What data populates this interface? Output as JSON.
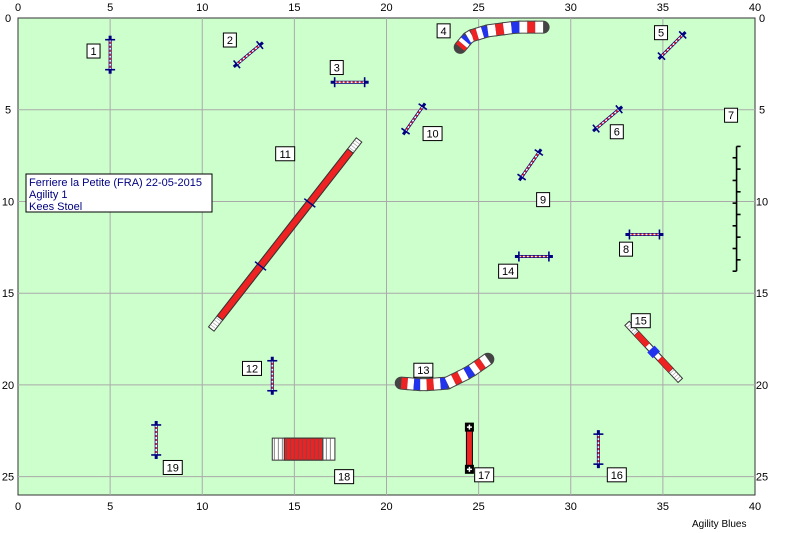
{
  "course": {
    "info_lines": [
      "Ferriere la Petite (FRA) 22-05-2015",
      "Agility 1",
      "Kees Stoel"
    ],
    "credit": "Agility Blues",
    "x_ticks": [
      "0",
      "5",
      "10",
      "15",
      "20",
      "25",
      "30",
      "35",
      "40"
    ],
    "y_ticks": [
      "0",
      "5",
      "10",
      "15",
      "20",
      "25"
    ],
    "colors": {
      "field": "#ccffcc",
      "grid": "#aaaaaa",
      "bar": "#ff2a2a",
      "navy": "#000080",
      "blue": "#2233ee",
      "red": "#ee2222"
    }
  },
  "obstacles": [
    {
      "number": "1",
      "type": "jump",
      "x": 5.0,
      "y": 2.0,
      "angle": 90
    },
    {
      "number": "2",
      "type": "jump",
      "x": 12.5,
      "y": 2.0,
      "angle": -40
    },
    {
      "number": "3",
      "type": "jump",
      "x": 18.0,
      "y": 3.5,
      "angle": 0
    },
    {
      "number": "4",
      "type": "tunnel",
      "x": 27.0,
      "y": 1.2
    },
    {
      "number": "5",
      "type": "jump",
      "x": 35.5,
      "y": 1.5,
      "angle": -45
    },
    {
      "number": "6",
      "type": "jump",
      "x": 32.0,
      "y": 5.5,
      "angle": -40
    },
    {
      "number": "7",
      "type": "weave",
      "x": 39.0,
      "y": 10.0
    },
    {
      "number": "8",
      "type": "jump",
      "x": 34.0,
      "y": 11.8,
      "angle": 0
    },
    {
      "number": "9",
      "type": "jump",
      "x": 27.8,
      "y": 8.0,
      "angle": -55
    },
    {
      "number": "10",
      "type": "jump",
      "x": 21.5,
      "y": 5.5,
      "angle": -55
    },
    {
      "number": "11",
      "type": "dogwalk",
      "x": 14.5,
      "y": 11.8,
      "angle": -52
    },
    {
      "number": "12",
      "type": "jump",
      "x": 13.8,
      "y": 19.5,
      "angle": 90
    },
    {
      "number": "13",
      "type": "tunnel",
      "x": 23.0,
      "y": 19.5
    },
    {
      "number": "14",
      "type": "jump",
      "x": 28.0,
      "y": 13.0,
      "angle": 0
    },
    {
      "number": "15",
      "type": "seesaw",
      "x": 34.5,
      "y": 18.2,
      "angle": 47
    },
    {
      "number": "16",
      "type": "jump",
      "x": 31.5,
      "y": 23.5,
      "angle": 90
    },
    {
      "number": "17",
      "type": "tire",
      "x": 24.5,
      "y": 23.5
    },
    {
      "number": "18",
      "type": "wall",
      "x": 15.0,
      "y": 23.5
    },
    {
      "number": "19",
      "type": "jump",
      "x": 7.5,
      "y": 23.0,
      "angle": 90
    }
  ]
}
